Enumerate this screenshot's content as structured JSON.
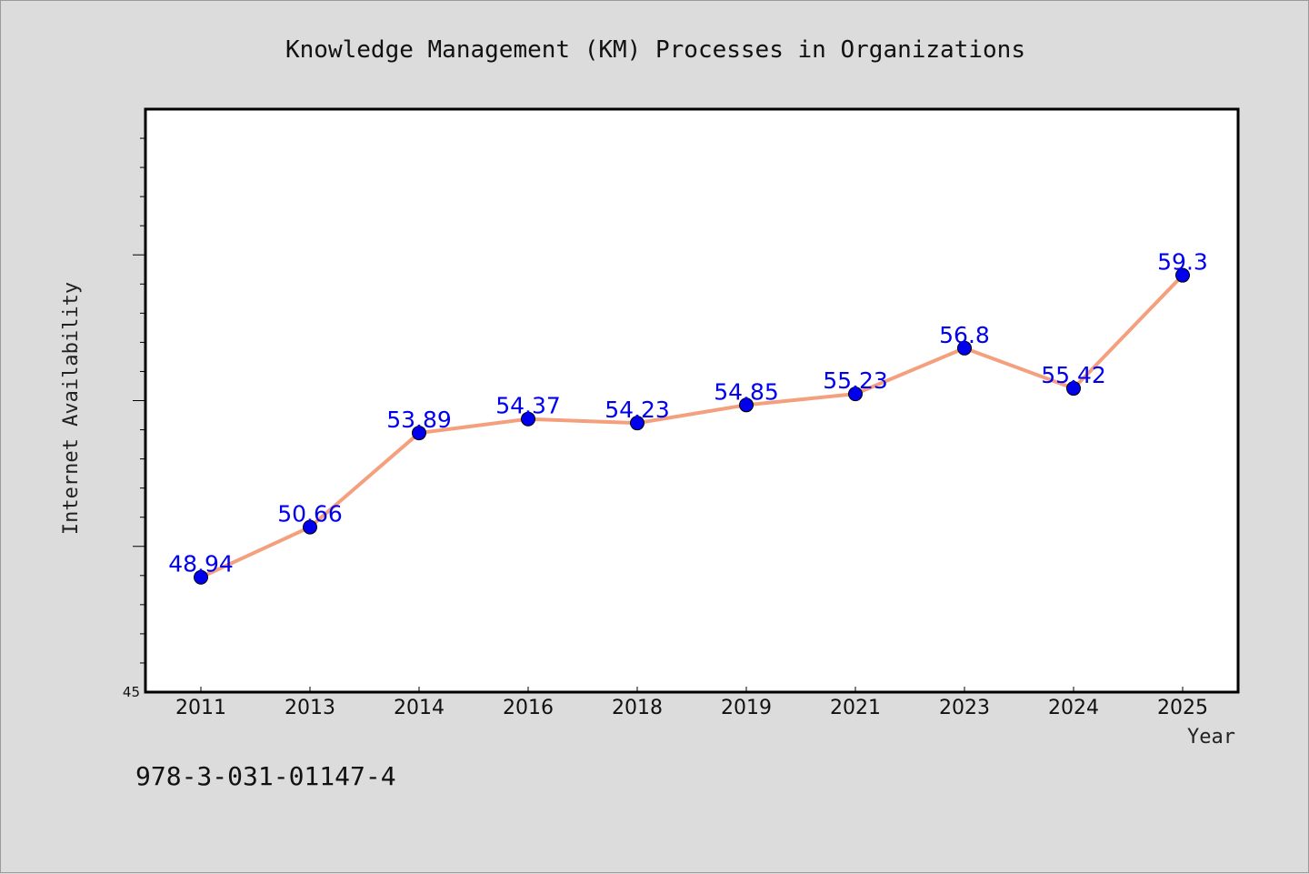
{
  "chart_data": {
    "type": "line",
    "title": "Knowledge Management (KM) Processes in Organizations",
    "xlabel": "Year",
    "ylabel": "Internet Availability",
    "categories": [
      "2011",
      "2013",
      "2014",
      "2016",
      "2018",
      "2019",
      "2021",
      "2023",
      "2024",
      "2025"
    ],
    "series": [
      {
        "values": [
          48.94,
          50.66,
          53.89,
          54.37,
          54.23,
          54.85,
          55.23,
          56.8,
          55.42,
          59.3
        ],
        "labels": [
          "48.94",
          "50.66",
          "53.89",
          "54.37",
          "54.23",
          "54.85",
          "55.23",
          "56.8",
          "55.42",
          "59.3"
        ],
        "line_color": "#f4a07e",
        "marker_color": "#0000ee"
      }
    ],
    "ylim": [
      45,
      65
    ],
    "yticks": [
      "45"
    ],
    "grid": false,
    "legend": "none"
  },
  "footnote": "978-3-031-01147-4"
}
